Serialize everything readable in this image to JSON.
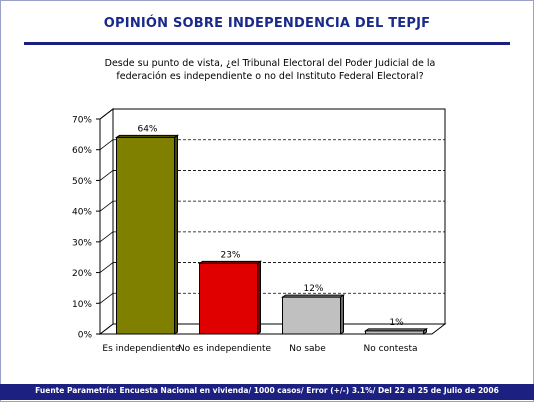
{
  "header": {
    "title": "OPINIÓN SOBRE INDEPENDENCIA DEL TEPJF"
  },
  "question": {
    "line1": "Desde su punto de vista, ¿el Tribunal Electoral del Poder Judicial de la",
    "line2": "federación es independiente o no del Instituto Federal Electoral?"
  },
  "footer": {
    "source": "Fuente Parametría: Encuesta Nacional en vivienda/ 1000 casos/ Error (+/-) 3.1%/ Del 22 al 25 de Julio de 2006"
  },
  "chart_data": {
    "type": "bar",
    "categories": [
      "Es independiente",
      "No es independiente",
      "No sabe",
      "No contesta"
    ],
    "values": [
      64,
      23,
      12,
      1
    ],
    "data_labels": [
      "64%",
      "23%",
      "12%",
      "1%"
    ],
    "colors": [
      "#808000",
      "#e00000",
      "#c0c0c0",
      "#c0c0c0"
    ],
    "ylim": [
      0,
      70
    ],
    "yticks": [
      0,
      10,
      20,
      30,
      40,
      50,
      60,
      70
    ],
    "ytick_labels": [
      "0%",
      "10%",
      "20%",
      "30%",
      "40%",
      "50%",
      "60%",
      "70%"
    ],
    "grid": true,
    "xlabel": "",
    "ylabel": ""
  }
}
